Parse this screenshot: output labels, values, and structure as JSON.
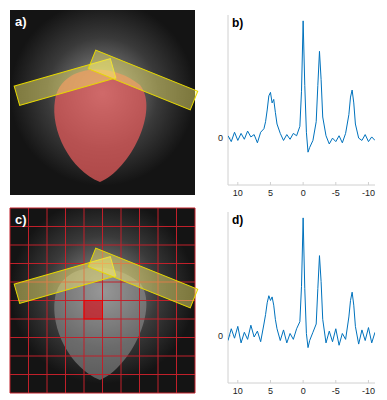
{
  "images": [
    {
      "label": "a)"
    },
    {
      "label": "c)"
    }
  ],
  "chart_data": [
    {
      "type": "line",
      "title": "b)",
      "color": "#0072bd",
      "x": [
        11.5,
        11,
        10.5,
        10,
        9.5,
        9,
        8.5,
        8,
        7.5,
        7,
        6.5,
        6,
        5.75,
        5.5,
        5.25,
        5,
        4.75,
        4.5,
        4.25,
        4,
        3.5,
        3,
        2.5,
        2,
        1.5,
        1,
        0.5,
        0.25,
        0,
        -0.25,
        -0.5,
        -0.75,
        -1,
        -1.5,
        -2,
        -2.25,
        -2.5,
        -2.75,
        -3,
        -3.5,
        -4,
        -4.5,
        -5,
        -5.5,
        -6,
        -6.5,
        -7,
        -7.25,
        -7.5,
        -7.75,
        -8,
        -8.5,
        -9,
        -9.5,
        -10,
        -10.5,
        -11
      ],
      "values": [
        2,
        -3,
        5,
        -2,
        4,
        -1,
        6,
        1,
        3,
        -4,
        5,
        8,
        14,
        24,
        36,
        39,
        30,
        33,
        22,
        12,
        4,
        -2,
        3,
        -1,
        4,
        2,
        10,
        40,
        100,
        45,
        5,
        -12,
        -8,
        -2,
        14,
        45,
        74,
        50,
        18,
        2,
        -5,
        0,
        -3,
        2,
        -4,
        4,
        20,
        35,
        41,
        30,
        12,
        0,
        -2,
        3,
        -3,
        1,
        -2
      ],
      "xlim": [
        11.5,
        -11
      ],
      "xticks": [
        10,
        5,
        0,
        -5,
        -10
      ],
      "ylim": [
        -40,
        105
      ],
      "yticks": [
        0
      ]
    },
    {
      "type": "line",
      "title": "d)",
      "color": "#0072bd",
      "x": [
        11.5,
        11,
        10.5,
        10,
        9.5,
        9,
        8.5,
        8,
        7.5,
        7,
        6.5,
        6,
        5.75,
        5.5,
        5.25,
        5,
        4.75,
        4.5,
        4.25,
        4,
        3.5,
        3,
        2.5,
        2,
        1.5,
        1,
        0.5,
        0.25,
        0,
        -0.25,
        -0.5,
        -0.75,
        -1,
        -1.5,
        -2,
        -2.25,
        -2.5,
        -2.75,
        -3,
        -3.5,
        -4,
        -4.5,
        -5,
        -5.5,
        -6,
        -6.5,
        -7,
        -7.25,
        -7.5,
        -7.75,
        -8,
        -8.5,
        -9,
        -9.5,
        -10,
        -10.5,
        -11
      ],
      "values": [
        -4,
        6,
        -2,
        8,
        -6,
        3,
        -3,
        9,
        -1,
        4,
        -5,
        10,
        18,
        28,
        34,
        30,
        33,
        26,
        14,
        6,
        -4,
        5,
        -6,
        2,
        -3,
        6,
        12,
        42,
        100,
        40,
        2,
        -10,
        -4,
        3,
        10,
        40,
        68,
        46,
        14,
        -6,
        4,
        -5,
        6,
        -8,
        2,
        -3,
        16,
        30,
        37,
        26,
        8,
        -7,
        5,
        -4,
        7,
        -6,
        3
      ],
      "xlim": [
        11.5,
        -11
      ],
      "xticks": [
        10,
        5,
        0,
        -5,
        -10
      ],
      "ylim": [
        -40,
        105
      ],
      "yticks": [
        0
      ]
    }
  ]
}
